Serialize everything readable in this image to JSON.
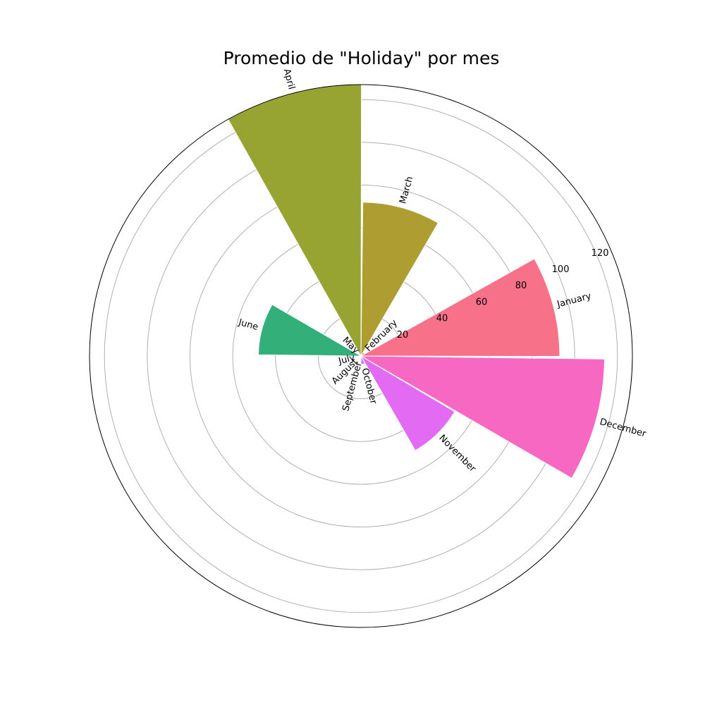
{
  "chart_data": {
    "type": "bar",
    "subtype": "polar",
    "title": "Promedio de \"Holiday\" por mes",
    "categories": [
      "January",
      "February",
      "March",
      "April",
      "May",
      "June",
      "July",
      "August",
      "September",
      "October",
      "November",
      "December"
    ],
    "values": [
      93,
      2,
      72,
      127,
      0.5,
      48,
      1,
      1,
      1,
      4,
      51,
      114
    ],
    "colors": [
      "#f77189",
      "#dc8932",
      "#ae9d31",
      "#97a431",
      "#77ab31",
      "#33b07a",
      "#36ada4",
      "#38a9c5",
      "#6e9bf4",
      "#cc7af4",
      "#e36bf4",
      "#f668c2"
    ],
    "rlim": [
      0,
      127
    ],
    "rticks": [
      20,
      40,
      60,
      80,
      100,
      120
    ],
    "grid": true
  }
}
